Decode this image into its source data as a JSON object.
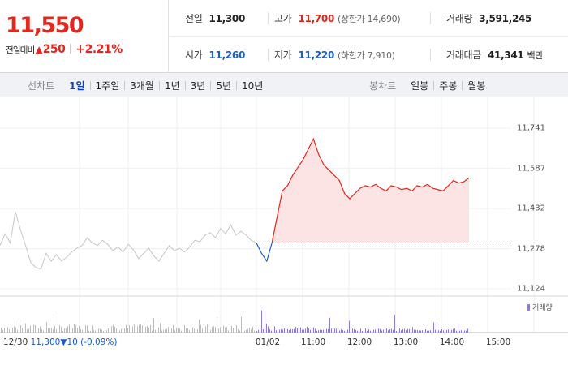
{
  "summary": {
    "price": "11,550",
    "change_label": "전일대비",
    "change_icon": "up-triangle-icon",
    "change_amount": "250",
    "change_percent": "+2.21%",
    "prev_close_label": "전일",
    "prev_close": "11,300",
    "high_label": "고가",
    "high": "11,700",
    "upper_limit": "(상한가 14,690)",
    "volume_label": "거래량",
    "volume": "3,591,245",
    "open_label": "시가",
    "open": "11,260",
    "low_label": "저가",
    "low": "11,220",
    "lower_limit": "(하한가 7,910)",
    "trade_value_label": "거래대금",
    "trade_value": "41,341",
    "trade_value_unit": "백만"
  },
  "line_tabs": {
    "title": "선차트",
    "items": [
      "1일",
      "1주일",
      "3개월",
      "1년",
      "3년",
      "5년",
      "10년"
    ],
    "active": "1일"
  },
  "candle_tabs": {
    "title": "봉차트",
    "items": [
      "일봉",
      "주봉",
      "월봉"
    ]
  },
  "colors": {
    "up": "#e3271d",
    "down": "#1a5ec9",
    "prev_day_line": "#c6c6c6",
    "up_fill": "#fde4e4",
    "volume": "#8a7fd0"
  },
  "chart_data": {
    "type": "line",
    "ylim": [
      11124,
      11741
    ],
    "y_ticks": [
      "11,741",
      "11,587",
      "11,432",
      "11,278",
      "11,124"
    ],
    "x_ticks": [
      "01/02",
      "11:00",
      "12:00",
      "13:00",
      "14:00",
      "15:00"
    ],
    "prev_session_label": "12/30",
    "prev_session_close": "11,300",
    "prev_session_change_icon": "down-triangle-icon",
    "prev_session_change": "10",
    "prev_session_change_pct": "(-0.09%)",
    "base_price": 11300,
    "volume_legend": "거래량",
    "series": [
      {
        "name": "12/30",
        "x_range": [
          "09:00",
          "15:30"
        ],
        "values": [
          11290,
          11335,
          11300,
          11420,
          11350,
          11290,
          11225,
          11205,
          11200,
          11260,
          11230,
          11255,
          11230,
          11245,
          11265,
          11280,
          11290,
          11320,
          11300,
          11290,
          11310,
          11295,
          11270,
          11285,
          11265,
          11295,
          11275,
          11240,
          11260,
          11280,
          11250,
          11230,
          11260,
          11290,
          11270,
          11280,
          11265,
          11285,
          11310,
          11305,
          11330,
          11340,
          11320,
          11355,
          11335,
          11370,
          11330,
          11345,
          11330,
          11310,
          11300
        ]
      },
      {
        "name": "01/02",
        "x_range": [
          "09:00",
          "15:30"
        ],
        "values": [
          11300,
          11260,
          11230,
          11300,
          11400,
          11500,
          11520,
          11560,
          11590,
          11620,
          11660,
          11700,
          11640,
          11600,
          11580,
          11560,
          11540,
          11490,
          11470,
          11490,
          11510,
          11520,
          11515,
          11525,
          11510,
          11500,
          11520,
          11515,
          11505,
          11510,
          11500,
          11520,
          11515,
          11525,
          11510,
          11505,
          11500,
          11520,
          11540,
          11530,
          11535,
          11550
        ]
      }
    ]
  }
}
